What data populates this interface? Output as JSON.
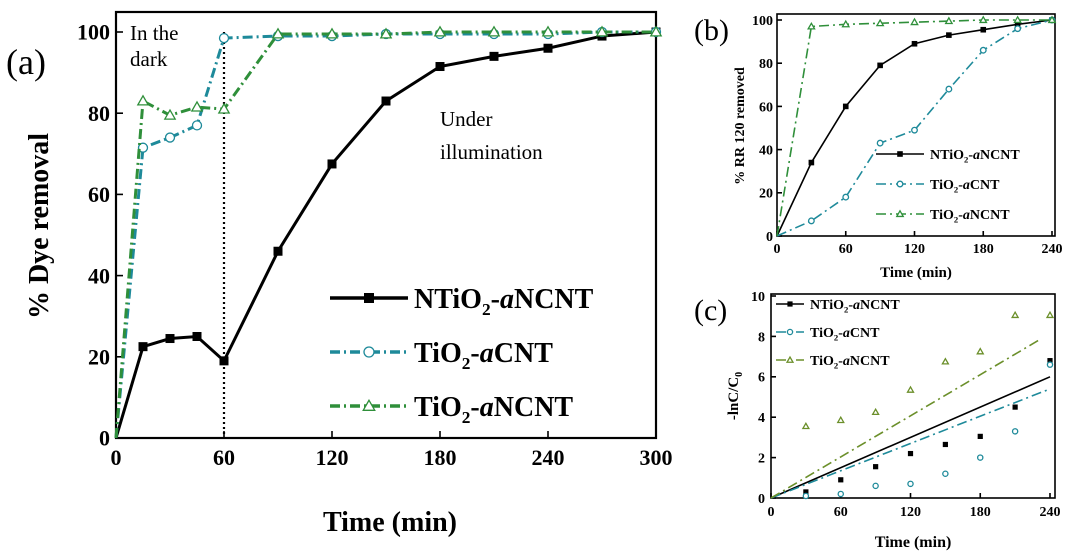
{
  "colors": {
    "black": "#000000",
    "teal": "#1e8a9a",
    "green": "#2f8f3a",
    "olive": "#6b8f2a"
  },
  "chart_data": [
    {
      "panel": "(a)",
      "type": "line",
      "xlabel": "Time (min)",
      "ylabel": "% Dye removal",
      "xlim": [
        0,
        300
      ],
      "ylim": [
        0,
        100
      ],
      "xticks": [
        0,
        60,
        120,
        180,
        240,
        300
      ],
      "yticks": [
        0,
        20,
        40,
        60,
        80,
        100
      ],
      "vline_x": 60,
      "annotations": [
        "In the",
        "dark",
        "Under",
        "illumination"
      ],
      "legend": "lower-right",
      "series": [
        {
          "name": "NTiO2-aNCNT",
          "name_main": "NTiO",
          "name_sub": "2",
          "name_dash": "-",
          "name_italic": "a",
          "name_tail": "NCNT",
          "color": "#000000",
          "marker": "square",
          "line": "solid",
          "x": [
            0,
            15,
            30,
            45,
            60,
            90,
            120,
            150,
            180,
            210,
            240,
            270,
            300
          ],
          "y": [
            0,
            22.5,
            24.5,
            25,
            19,
            46,
            67.5,
            83,
            91.5,
            94,
            96,
            99,
            100
          ]
        },
        {
          "name": "TiO2-aCNT",
          "name_main": "TiO",
          "name_sub": "2",
          "name_dash": "-",
          "name_italic": "a",
          "name_tail": "CNT",
          "color": "#1e8a9a",
          "marker": "circle",
          "line": "dashdot",
          "x": [
            0,
            15,
            30,
            45,
            60,
            90,
            120,
            150,
            180,
            210,
            240,
            270,
            300
          ],
          "y": [
            0,
            71.5,
            74,
            77,
            98.5,
            99,
            99,
            99.5,
            99.5,
            99.5,
            99.5,
            100,
            100
          ]
        },
        {
          "name": "TiO2-aNCNT",
          "name_main": "TiO",
          "name_sub": "2",
          "name_dash": "-",
          "name_italic": "a",
          "name_tail": "NCNT",
          "color": "#2f8f3a",
          "marker": "triangle",
          "line": "dashdot",
          "x": [
            0,
            15,
            30,
            45,
            60,
            90,
            120,
            150,
            180,
            210,
            240,
            270,
            300
          ],
          "y": [
            0,
            83,
            79.5,
            81.5,
            81,
            99.5,
            99.5,
            99.5,
            100,
            100,
            100,
            100,
            100
          ]
        }
      ]
    },
    {
      "panel": "(b)",
      "type": "line",
      "xlabel": "Time (min)",
      "ylabel": "% RR 120 removed",
      "xlim": [
        0,
        240
      ],
      "ylim": [
        0,
        100
      ],
      "xticks": [
        0,
        60,
        120,
        180,
        240
      ],
      "yticks": [
        0,
        20,
        40,
        60,
        80,
        100
      ],
      "legend": "lower-right",
      "series": [
        {
          "name": "NTiO2-aNCNT",
          "name_main": "NTiO",
          "name_sub": "2",
          "name_dash": "-",
          "name_italic": "a",
          "name_tail": "NCNT",
          "color": "#000000",
          "marker": "square",
          "line": "solid",
          "x": [
            0,
            30,
            60,
            90,
            120,
            150,
            180,
            210,
            240
          ],
          "y": [
            0,
            34,
            60,
            79,
            89,
            93,
            95.5,
            98,
            100
          ]
        },
        {
          "name": "TiO2-aCNT",
          "name_main": "TiO",
          "name_sub": "2",
          "name_dash": "-",
          "name_italic": "a",
          "name_tail": "CNT",
          "color": "#1e8a9a",
          "marker": "circle",
          "line": "dashdot",
          "x": [
            0,
            30,
            60,
            90,
            120,
            150,
            180,
            210,
            240
          ],
          "y": [
            0,
            7,
            18,
            43,
            49,
            68,
            86,
            96,
            100
          ]
        },
        {
          "name": "TiO2-aNCNT",
          "name_main": "TiO",
          "name_sub": "2",
          "name_dash": "-",
          "name_italic": "a",
          "name_tail": "NCNT",
          "color": "#2f8f3a",
          "marker": "triangle",
          "line": "dashdot",
          "x": [
            0,
            30,
            60,
            90,
            120,
            150,
            180,
            210,
            240
          ],
          "y": [
            0,
            97,
            98,
            98.5,
            99,
            99.5,
            100,
            100,
            100
          ]
        }
      ]
    },
    {
      "panel": "(c)",
      "type": "scatter",
      "xlabel": "Time (min)",
      "ylabel": "-lnC/C0",
      "ylabel_main": "-lnC/C",
      "ylabel_sub": "0",
      "xlim": [
        0,
        240
      ],
      "ylim": [
        0,
        10
      ],
      "xticks": [
        0,
        60,
        120,
        180,
        240
      ],
      "yticks": [
        0,
        2,
        4,
        6,
        8,
        10
      ],
      "legend": "top-left",
      "series": [
        {
          "name": "NTiO2-aNCNT",
          "name_main": "NTiO",
          "name_sub": "2",
          "name_dash": "-",
          "name_italic": "a",
          "name_tail": "NCNT",
          "color": "#000000",
          "marker": "square",
          "line": "solid",
          "x": [
            30,
            60,
            90,
            120,
            150,
            180,
            210,
            240
          ],
          "y": [
            0.3,
            0.9,
            1.55,
            2.2,
            2.65,
            3.05,
            4.5,
            6.8
          ],
          "fit": [
            [
              0,
              0
            ],
            [
              240,
              6.0
            ]
          ]
        },
        {
          "name": "TiO2-aCNT",
          "name_main": "TiO",
          "name_sub": "2",
          "name_dash": "-",
          "name_italic": "a",
          "name_tail": "CNT",
          "color": "#1e8a9a",
          "marker": "circle",
          "line": "dashdot",
          "x": [
            30,
            60,
            90,
            120,
            150,
            180,
            210,
            240
          ],
          "y": [
            0.1,
            0.2,
            0.6,
            0.7,
            1.2,
            2.0,
            3.3,
            6.6
          ],
          "fit": [
            [
              0,
              0
            ],
            [
              240,
              5.4
            ]
          ]
        },
        {
          "name": "TiO2-aNCNT",
          "name_main": "TiO",
          "name_sub": "2",
          "name_dash": "-",
          "name_italic": "a",
          "name_tail": "NCNT",
          "color": "#6b8f2a",
          "marker": "triangle",
          "line": "dashdot",
          "x": [
            30,
            60,
            90,
            120,
            150,
            180,
            210,
            240
          ],
          "y": [
            3.55,
            3.85,
            4.25,
            5.35,
            6.75,
            7.25,
            9.05,
            9.05
          ],
          "fit": [
            [
              0,
              0
            ],
            [
              230,
              7.8
            ]
          ]
        }
      ]
    }
  ]
}
